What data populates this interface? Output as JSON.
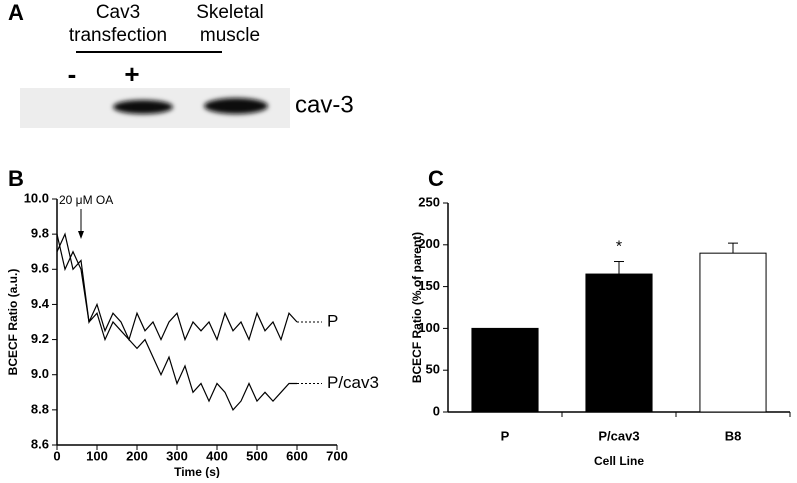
{
  "panel_a": {
    "panel_label": "A",
    "group_1": [
      "Cav3",
      "transfection"
    ],
    "group_2": [
      "Skeletal",
      "muscle"
    ],
    "lanes": [
      "-",
      "+"
    ],
    "band_label": "cav-3"
  },
  "chart_data": [
    {
      "type": "line",
      "panel_label": "B",
      "xlabel": "Time (s)",
      "ylabel": "BCECF Ratio (a.u.)",
      "annotation": {
        "text": "20 μM OA",
        "x": 60
      },
      "x": [
        0,
        20,
        40,
        60,
        80,
        100,
        120,
        140,
        160,
        180,
        200,
        220,
        240,
        260,
        280,
        300,
        320,
        340,
        360,
        380,
        400,
        420,
        440,
        460,
        480,
        500,
        520,
        540,
        560,
        580,
        600
      ],
      "series": [
        {
          "name": "P",
          "color": "#000000",
          "values": [
            9.8,
            9.6,
            9.7,
            9.6,
            9.3,
            9.4,
            9.25,
            9.35,
            9.3,
            9.2,
            9.35,
            9.25,
            9.3,
            9.2,
            9.3,
            9.35,
            9.2,
            9.3,
            9.25,
            9.3,
            9.2,
            9.35,
            9.25,
            9.3,
            9.2,
            9.35,
            9.25,
            9.3,
            9.2,
            9.35,
            9.3
          ]
        },
        {
          "name": "P/cav3",
          "color": "#000000",
          "values": [
            9.7,
            9.8,
            9.6,
            9.65,
            9.3,
            9.35,
            9.2,
            9.3,
            9.25,
            9.2,
            9.15,
            9.2,
            9.1,
            9.0,
            9.1,
            8.95,
            9.05,
            8.9,
            8.95,
            8.85,
            8.95,
            8.9,
            8.8,
            8.85,
            8.95,
            8.85,
            8.9,
            8.85,
            8.9,
            8.95,
            8.95
          ]
        }
      ],
      "xlim": [
        0,
        700
      ],
      "xticks": [
        0,
        100,
        200,
        300,
        400,
        500,
        600,
        700
      ],
      "ylim": [
        8.6,
        10.0
      ],
      "yticks": [
        8.6,
        8.8,
        {
          "value": 9,
          "label": "9.0"
        },
        9.2,
        9.4,
        9.6,
        9.8,
        {
          "value": 10,
          "label": "10.0"
        }
      ]
    },
    {
      "type": "bar",
      "panel_label": "C",
      "xlabel": "Cell Line",
      "ylabel": "BCECF Ratio (% of parent)",
      "categories": [
        "P",
        "P/cav3",
        "B8"
      ],
      "values": [
        100,
        165,
        190
      ],
      "errors": [
        0,
        15,
        12
      ],
      "colors": [
        "#000000",
        "#000000",
        "#ffffff"
      ],
      "significance": [
        null,
        "*",
        null
      ],
      "ylim": [
        0,
        250
      ],
      "yticks": [
        0,
        50,
        100,
        150,
        200,
        250
      ]
    }
  ]
}
